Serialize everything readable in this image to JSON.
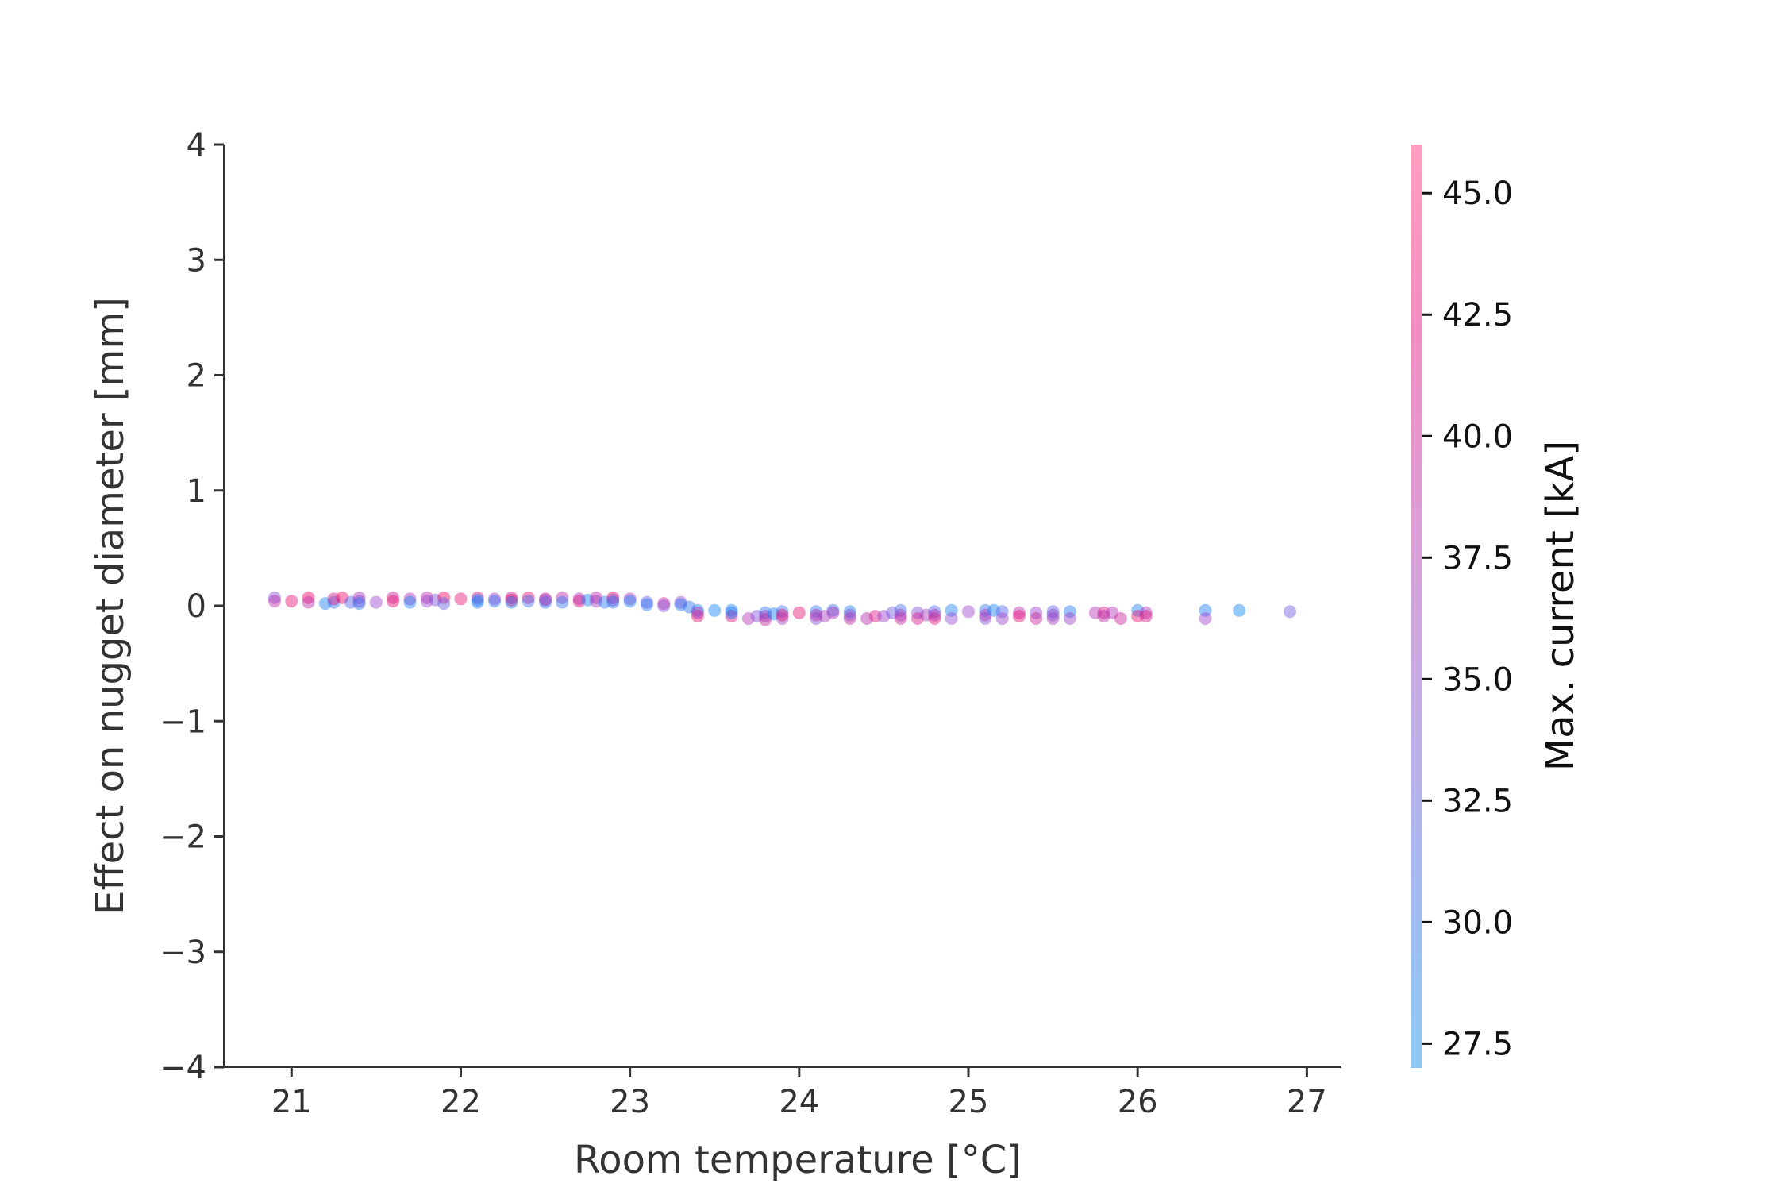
{
  "chart_data": {
    "type": "scatter",
    "xlabel": "Room temperature [°C]",
    "ylabel": "Effect on nugget diameter [mm]",
    "xlim": [
      20.6,
      27.2
    ],
    "ylim": [
      -4,
      4
    ],
    "x_ticks": [
      21,
      22,
      23,
      24,
      25,
      26,
      27
    ],
    "x_tick_labels": [
      "21",
      "22",
      "23",
      "24",
      "25",
      "26",
      "27"
    ],
    "y_ticks": [
      -4,
      -3,
      -2,
      -1,
      0,
      1,
      2,
      3,
      4
    ],
    "y_tick_labels": [
      "−4",
      "−3",
      "−2",
      "−1",
      "0",
      "1",
      "2",
      "3",
      "4"
    ],
    "grid": false,
    "colorbar": {
      "label": "Max. current [kA]",
      "range": [
        27,
        46
      ],
      "ticks": [
        27.5,
        30.0,
        32.5,
        35.0,
        37.5,
        40.0,
        42.5,
        45.0
      ],
      "tick_labels": [
        "27.5",
        "30.0",
        "32.5",
        "35.0",
        "37.5",
        "40.0",
        "42.5",
        "45.0"
      ],
      "colors": [
        "#8ec9f5",
        "#a3b9ef",
        "#c4ace2",
        "#dc9cd4",
        "#f08cc0",
        "#ff9ec0"
      ]
    },
    "point_colors": [
      "#008bfb",
      "#4070f0",
      "#8a4fd8",
      "#c02aa8",
      "#ff0051"
    ],
    "point_alpha": 0.45,
    "points": [
      {
        "x": 20.9,
        "y": 0.07,
        "c": 36
      },
      {
        "x": 20.9,
        "y": 0.04,
        "c": 41
      },
      {
        "x": 21.0,
        "y": 0.04,
        "c": 44
      },
      {
        "x": 21.1,
        "y": 0.07,
        "c": 45
      },
      {
        "x": 21.1,
        "y": 0.03,
        "c": 41
      },
      {
        "x": 21.2,
        "y": 0.02,
        "c": 29
      },
      {
        "x": 21.25,
        "y": 0.03,
        "c": 31
      },
      {
        "x": 21.25,
        "y": 0.06,
        "c": 43
      },
      {
        "x": 21.3,
        "y": 0.07,
        "c": 45
      },
      {
        "x": 21.35,
        "y": 0.03,
        "c": 33
      },
      {
        "x": 21.4,
        "y": 0.07,
        "c": 39
      },
      {
        "x": 21.4,
        "y": 0.04,
        "c": 37
      },
      {
        "x": 21.4,
        "y": 0.02,
        "c": 31
      },
      {
        "x": 21.5,
        "y": 0.03,
        "c": 38
      },
      {
        "x": 21.6,
        "y": 0.07,
        "c": 42
      },
      {
        "x": 21.6,
        "y": 0.04,
        "c": 44
      },
      {
        "x": 21.7,
        "y": 0.06,
        "c": 40
      },
      {
        "x": 21.7,
        "y": 0.03,
        "c": 29
      },
      {
        "x": 21.8,
        "y": 0.07,
        "c": 41
      },
      {
        "x": 21.8,
        "y": 0.04,
        "c": 38
      },
      {
        "x": 21.85,
        "y": 0.05,
        "c": 36
      },
      {
        "x": 21.9,
        "y": 0.07,
        "c": 45
      },
      {
        "x": 21.9,
        "y": 0.02,
        "c": 34
      },
      {
        "x": 22.0,
        "y": 0.06,
        "c": 44
      },
      {
        "x": 22.1,
        "y": 0.07,
        "c": 43
      },
      {
        "x": 22.1,
        "y": 0.03,
        "c": 29
      },
      {
        "x": 22.1,
        "y": 0.05,
        "c": 30
      },
      {
        "x": 22.2,
        "y": 0.06,
        "c": 39
      },
      {
        "x": 22.2,
        "y": 0.04,
        "c": 31
      },
      {
        "x": 22.3,
        "y": 0.07,
        "c": 42
      },
      {
        "x": 22.3,
        "y": 0.05,
        "c": 46
      },
      {
        "x": 22.3,
        "y": 0.03,
        "c": 30
      },
      {
        "x": 22.4,
        "y": 0.07,
        "c": 44
      },
      {
        "x": 22.4,
        "y": 0.04,
        "c": 32
      },
      {
        "x": 22.5,
        "y": 0.06,
        "c": 43
      },
      {
        "x": 22.5,
        "y": 0.03,
        "c": 30
      },
      {
        "x": 22.5,
        "y": 0.05,
        "c": 38
      },
      {
        "x": 22.6,
        "y": 0.07,
        "c": 41
      },
      {
        "x": 22.6,
        "y": 0.03,
        "c": 31
      },
      {
        "x": 22.7,
        "y": 0.06,
        "c": 40
      },
      {
        "x": 22.7,
        "y": 0.04,
        "c": 43
      },
      {
        "x": 22.75,
        "y": 0.05,
        "c": 29
      },
      {
        "x": 22.8,
        "y": 0.07,
        "c": 41
      },
      {
        "x": 22.8,
        "y": 0.04,
        "c": 39
      },
      {
        "x": 22.85,
        "y": 0.03,
        "c": 30
      },
      {
        "x": 22.9,
        "y": 0.07,
        "c": 45
      },
      {
        "x": 22.9,
        "y": 0.05,
        "c": 37
      },
      {
        "x": 22.9,
        "y": 0.03,
        "c": 31
      },
      {
        "x": 23.0,
        "y": 0.06,
        "c": 40
      },
      {
        "x": 23.0,
        "y": 0.04,
        "c": 29
      },
      {
        "x": 23.1,
        "y": 0.03,
        "c": 34
      },
      {
        "x": 23.1,
        "y": 0.01,
        "c": 31
      },
      {
        "x": 23.2,
        "y": 0.02,
        "c": 42
      },
      {
        "x": 23.2,
        "y": 0.0,
        "c": 36
      },
      {
        "x": 23.3,
        "y": 0.03,
        "c": 38
      },
      {
        "x": 23.3,
        "y": 0.01,
        "c": 30
      },
      {
        "x": 23.35,
        "y": -0.01,
        "c": 31
      },
      {
        "x": 23.4,
        "y": -0.04,
        "c": 29
      },
      {
        "x": 23.4,
        "y": -0.09,
        "c": 44
      },
      {
        "x": 23.4,
        "y": -0.06,
        "c": 40
      },
      {
        "x": 23.5,
        "y": -0.04,
        "c": 28
      },
      {
        "x": 23.6,
        "y": -0.04,
        "c": 29
      },
      {
        "x": 23.6,
        "y": -0.09,
        "c": 43
      },
      {
        "x": 23.6,
        "y": -0.06,
        "c": 30
      },
      {
        "x": 23.7,
        "y": -0.11,
        "c": 40
      },
      {
        "x": 23.75,
        "y": -0.09,
        "c": 36
      },
      {
        "x": 23.8,
        "y": -0.06,
        "c": 31
      },
      {
        "x": 23.8,
        "y": -0.12,
        "c": 42
      },
      {
        "x": 23.8,
        "y": -0.09,
        "c": 39
      },
      {
        "x": 23.85,
        "y": -0.07,
        "c": 29
      },
      {
        "x": 23.9,
        "y": -0.05,
        "c": 31
      },
      {
        "x": 23.9,
        "y": -0.11,
        "c": 38
      },
      {
        "x": 23.9,
        "y": -0.08,
        "c": 44
      },
      {
        "x": 24.0,
        "y": -0.06,
        "c": 44
      },
      {
        "x": 24.1,
        "y": -0.05,
        "c": 30
      },
      {
        "x": 24.1,
        "y": -0.11,
        "c": 36
      },
      {
        "x": 24.1,
        "y": -0.08,
        "c": 41
      },
      {
        "x": 24.15,
        "y": -0.09,
        "c": 39
      },
      {
        "x": 24.2,
        "y": -0.04,
        "c": 31
      },
      {
        "x": 24.2,
        "y": -0.06,
        "c": 40
      },
      {
        "x": 24.3,
        "y": -0.05,
        "c": 29
      },
      {
        "x": 24.3,
        "y": -0.11,
        "c": 42
      },
      {
        "x": 24.3,
        "y": -0.08,
        "c": 37
      },
      {
        "x": 24.4,
        "y": -0.11,
        "c": 41
      },
      {
        "x": 24.45,
        "y": -0.09,
        "c": 43
      },
      {
        "x": 24.5,
        "y": -0.09,
        "c": 38
      },
      {
        "x": 24.55,
        "y": -0.06,
        "c": 35
      },
      {
        "x": 24.6,
        "y": -0.04,
        "c": 32
      },
      {
        "x": 24.6,
        "y": -0.11,
        "c": 42
      },
      {
        "x": 24.6,
        "y": -0.08,
        "c": 39
      },
      {
        "x": 24.7,
        "y": -0.06,
        "c": 36
      },
      {
        "x": 24.7,
        "y": -0.11,
        "c": 43
      },
      {
        "x": 24.75,
        "y": -0.08,
        "c": 39
      },
      {
        "x": 24.8,
        "y": -0.05,
        "c": 33
      },
      {
        "x": 24.8,
        "y": -0.11,
        "c": 44
      },
      {
        "x": 24.8,
        "y": -0.08,
        "c": 40
      },
      {
        "x": 24.9,
        "y": -0.04,
        "c": 29
      },
      {
        "x": 24.9,
        "y": -0.11,
        "c": 37
      },
      {
        "x": 25.0,
        "y": -0.05,
        "c": 38
      },
      {
        "x": 25.1,
        "y": -0.04,
        "c": 31
      },
      {
        "x": 25.1,
        "y": -0.11,
        "c": 36
      },
      {
        "x": 25.1,
        "y": -0.08,
        "c": 40
      },
      {
        "x": 25.15,
        "y": -0.04,
        "c": 29
      },
      {
        "x": 25.2,
        "y": -0.05,
        "c": 33
      },
      {
        "x": 25.2,
        "y": -0.11,
        "c": 38
      },
      {
        "x": 25.3,
        "y": -0.06,
        "c": 41
      },
      {
        "x": 25.3,
        "y": -0.09,
        "c": 44
      },
      {
        "x": 25.4,
        "y": -0.06,
        "c": 38
      },
      {
        "x": 25.4,
        "y": -0.11,
        "c": 42
      },
      {
        "x": 25.5,
        "y": -0.05,
        "c": 34
      },
      {
        "x": 25.5,
        "y": -0.11,
        "c": 39
      },
      {
        "x": 25.5,
        "y": -0.08,
        "c": 37
      },
      {
        "x": 25.6,
        "y": -0.05,
        "c": 30
      },
      {
        "x": 25.6,
        "y": -0.11,
        "c": 38
      },
      {
        "x": 25.75,
        "y": -0.06,
        "c": 40
      },
      {
        "x": 25.8,
        "y": -0.06,
        "c": 43
      },
      {
        "x": 25.8,
        "y": -0.09,
        "c": 41
      },
      {
        "x": 25.85,
        "y": -0.06,
        "c": 40
      },
      {
        "x": 25.9,
        "y": -0.11,
        "c": 42
      },
      {
        "x": 26.0,
        "y": -0.04,
        "c": 29
      },
      {
        "x": 26.0,
        "y": -0.09,
        "c": 44
      },
      {
        "x": 26.05,
        "y": -0.06,
        "c": 40
      },
      {
        "x": 26.05,
        "y": -0.09,
        "c": 43
      },
      {
        "x": 26.4,
        "y": -0.04,
        "c": 29
      },
      {
        "x": 26.4,
        "y": -0.11,
        "c": 38
      },
      {
        "x": 26.6,
        "y": -0.04,
        "c": 28
      },
      {
        "x": 26.9,
        "y": -0.05,
        "c": 35
      }
    ]
  }
}
